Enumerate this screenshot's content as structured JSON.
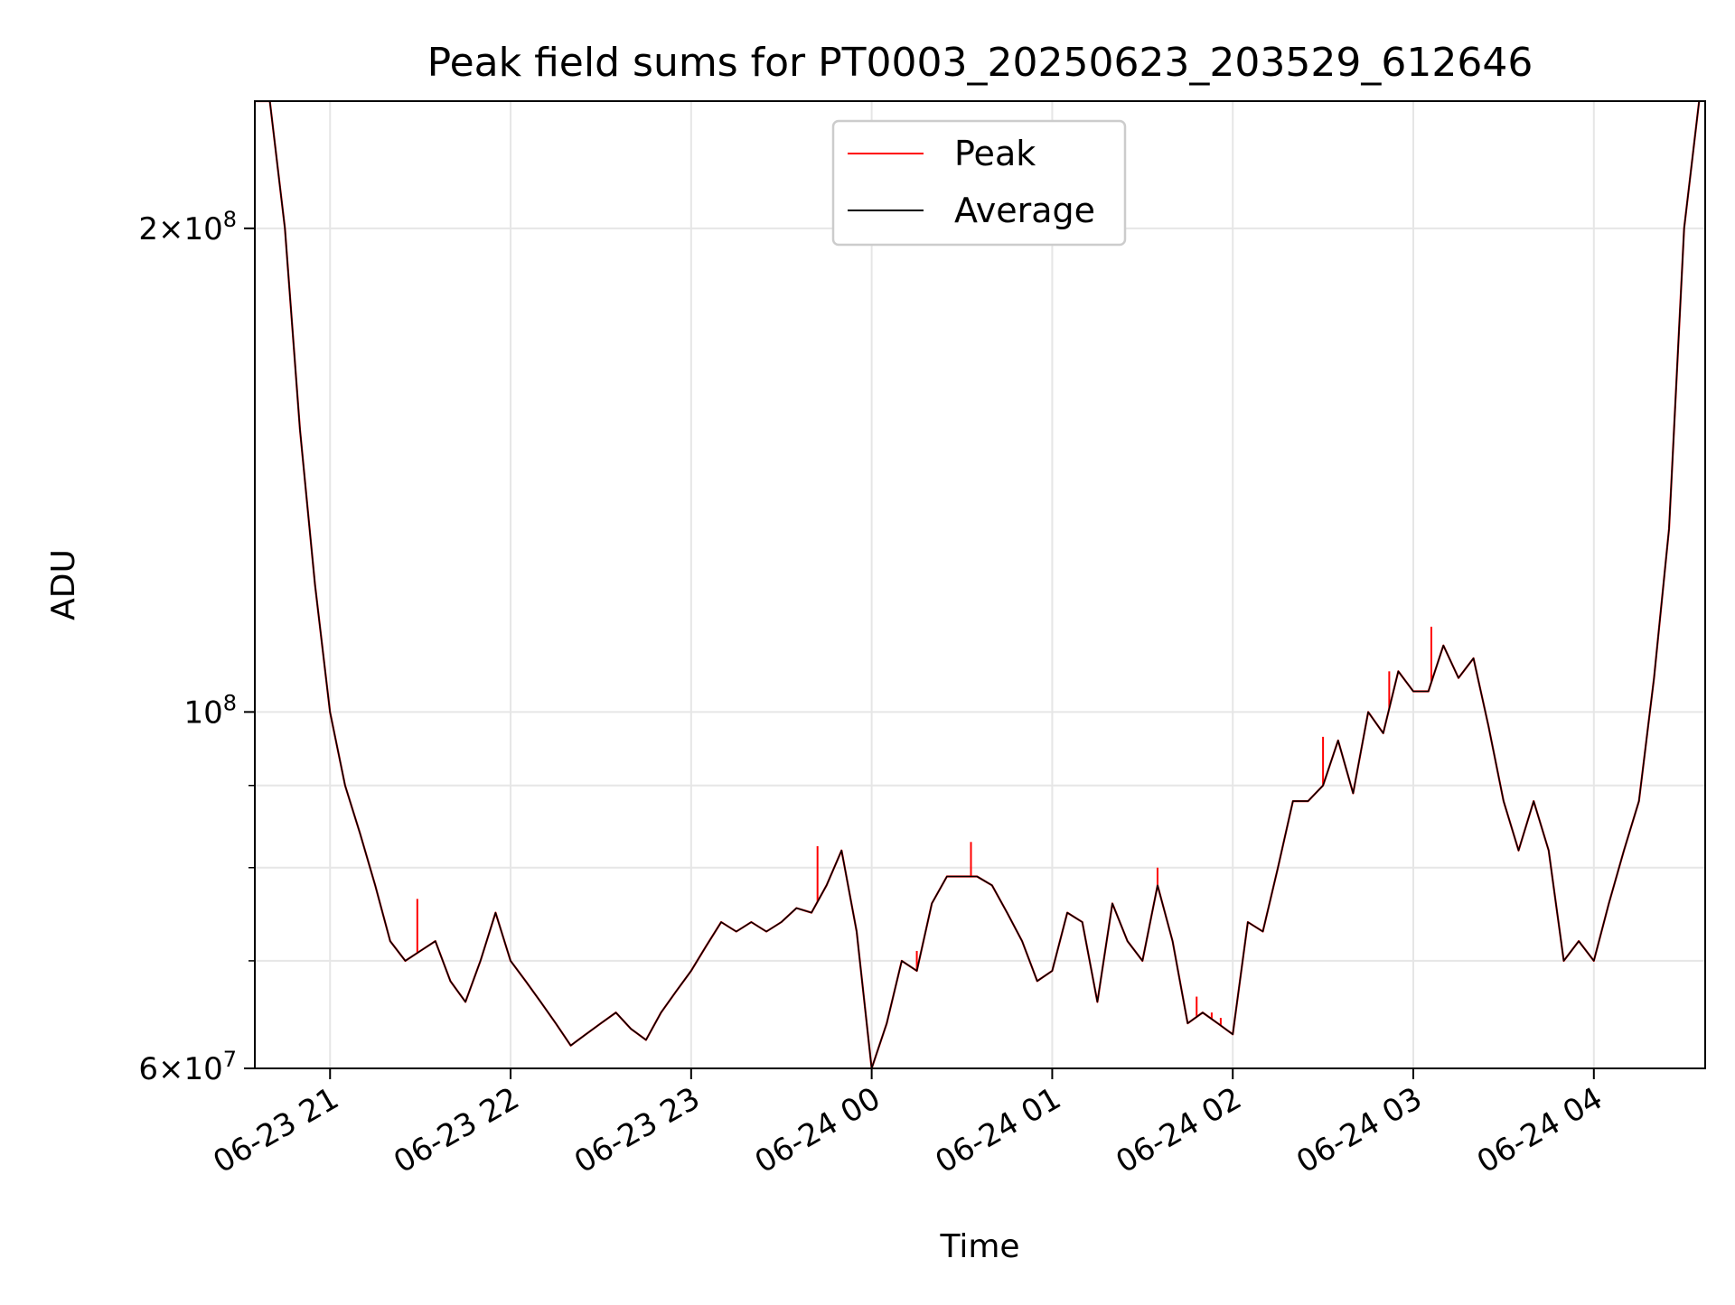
{
  "chart_data": {
    "type": "line",
    "title": "Peak field sums for PT0003_20250623_203529_612646",
    "xlabel": "Time",
    "ylabel": "ADU",
    "yscale": "log",
    "xlim": [
      "2025-06-23 20:35",
      "2025-06-24 04:37"
    ],
    "ylim": [
      60000000,
      240000000
    ],
    "grid": true,
    "legend": {
      "position": "top-center"
    },
    "x_ticks": [
      {
        "value": "2025-06-23 21:00",
        "label": "06-23 21"
      },
      {
        "value": "2025-06-23 22:00",
        "label": "06-23 22"
      },
      {
        "value": "2025-06-23 23:00",
        "label": "06-23 23"
      },
      {
        "value": "2025-06-24 00:00",
        "label": "06-24 00"
      },
      {
        "value": "2025-06-24 01:00",
        "label": "06-24 01"
      },
      {
        "value": "2025-06-24 02:00",
        "label": "06-24 02"
      },
      {
        "value": "2025-06-24 03:00",
        "label": "06-24 03"
      },
      {
        "value": "2025-06-24 04:00",
        "label": "06-24 04"
      }
    ],
    "y_ticks": [
      {
        "value": 60000000,
        "mantissa": "6",
        "exponent": "7"
      },
      {
        "value": 100000000,
        "mantissa": "",
        "exponent": "8"
      },
      {
        "value": 200000000,
        "mantissa": "2",
        "exponent": "8"
      }
    ],
    "y_minor_ticks": [
      70000000,
      80000000,
      90000000
    ],
    "series": [
      {
        "name": "Peak",
        "color": "#ff0000",
        "x": [
          "2025-06-24 00:15",
          "2025-06-24 00:33",
          "2025-06-24 01:35",
          "2025-06-24 02:30",
          "2025-06-24 03:06",
          "2025-06-23 21:29",
          "2025-06-23 23:42",
          "2025-06-24 01:48",
          "2025-06-24 01:53",
          "2025-06-24 01:56",
          "2025-06-24 02:52"
        ],
        "y": [
          71000000,
          83000000,
          80000000,
          96500000,
          113000000,
          76500000,
          82500000,
          66500000,
          65000000,
          64500000,
          106000000
        ]
      },
      {
        "name": "Average",
        "color": "#000000",
        "x": [
          "2025-06-23 20:35",
          "2025-06-23 20:40",
          "2025-06-23 20:45",
          "2025-06-23 20:50",
          "2025-06-23 20:55",
          "2025-06-23 21:00",
          "2025-06-23 21:05",
          "2025-06-23 21:10",
          "2025-06-23 21:15",
          "2025-06-23 21:20",
          "2025-06-23 21:25",
          "2025-06-23 21:30",
          "2025-06-23 21:35",
          "2025-06-23 21:40",
          "2025-06-23 21:45",
          "2025-06-23 21:50",
          "2025-06-23 21:55",
          "2025-06-23 22:00",
          "2025-06-23 22:05",
          "2025-06-23 22:10",
          "2025-06-23 22:15",
          "2025-06-23 22:20",
          "2025-06-23 22:25",
          "2025-06-23 22:30",
          "2025-06-23 22:35",
          "2025-06-23 22:40",
          "2025-06-23 22:45",
          "2025-06-23 22:50",
          "2025-06-23 22:55",
          "2025-06-23 23:00",
          "2025-06-23 23:05",
          "2025-06-23 23:10",
          "2025-06-23 23:15",
          "2025-06-23 23:20",
          "2025-06-23 23:25",
          "2025-06-23 23:30",
          "2025-06-23 23:35",
          "2025-06-23 23:40",
          "2025-06-23 23:45",
          "2025-06-23 23:50",
          "2025-06-23 23:55",
          "2025-06-24 00:00",
          "2025-06-24 00:05",
          "2025-06-24 00:10",
          "2025-06-24 00:15",
          "2025-06-24 00:20",
          "2025-06-24 00:25",
          "2025-06-24 00:30",
          "2025-06-24 00:35",
          "2025-06-24 00:40",
          "2025-06-24 00:45",
          "2025-06-24 00:50",
          "2025-06-24 00:55",
          "2025-06-24 01:00",
          "2025-06-24 01:05",
          "2025-06-24 01:10",
          "2025-06-24 01:15",
          "2025-06-24 01:20",
          "2025-06-24 01:25",
          "2025-06-24 01:30",
          "2025-06-24 01:35",
          "2025-06-24 01:40",
          "2025-06-24 01:45",
          "2025-06-24 01:50",
          "2025-06-24 01:55",
          "2025-06-24 02:00",
          "2025-06-24 02:05",
          "2025-06-24 02:10",
          "2025-06-24 02:15",
          "2025-06-24 02:20",
          "2025-06-24 02:25",
          "2025-06-24 02:30",
          "2025-06-24 02:35",
          "2025-06-24 02:40",
          "2025-06-24 02:45",
          "2025-06-24 02:50",
          "2025-06-24 02:55",
          "2025-06-24 03:00",
          "2025-06-24 03:05",
          "2025-06-24 03:10",
          "2025-06-24 03:15",
          "2025-06-24 03:20",
          "2025-06-24 03:25",
          "2025-06-24 03:30",
          "2025-06-24 03:35",
          "2025-06-24 03:40",
          "2025-06-24 03:45",
          "2025-06-24 03:50",
          "2025-06-24 03:55",
          "2025-06-24 04:00",
          "2025-06-24 04:05",
          "2025-06-24 04:10",
          "2025-06-24 04:15",
          "2025-06-24 04:20",
          "2025-06-24 04:25",
          "2025-06-24 04:30",
          "2025-06-24 04:35"
        ],
        "y": [
          240000000,
          240000000,
          200000000,
          150000000,
          120000000,
          100000000,
          90000000,
          84000000,
          78000000,
          72000000,
          70000000,
          71000000,
          72000000,
          68000000,
          66000000,
          70000000,
          75000000,
          70000000,
          68000000,
          66000000,
          64000000,
          62000000,
          63000000,
          64000000,
          65000000,
          63500000,
          62500000,
          65000000,
          67000000,
          69000000,
          71500000,
          74000000,
          73000000,
          74000000,
          73000000,
          74000000,
          75500000,
          75000000,
          78000000,
          82000000,
          73000000,
          60000000,
          64000000,
          70000000,
          69000000,
          76000000,
          79000000,
          79000000,
          79000000,
          78000000,
          75000000,
          72000000,
          68000000,
          69000000,
          75000000,
          74000000,
          66000000,
          76000000,
          72000000,
          70000000,
          78000000,
          72000000,
          64000000,
          65000000,
          64000000,
          63000000,
          74000000,
          73000000,
          80000000,
          88000000,
          88000000,
          90000000,
          96000000,
          89000000,
          100000000,
          97000000,
          106000000,
          103000000,
          103000000,
          110000000,
          105000000,
          108000000,
          98000000,
          88000000,
          82000000,
          88000000,
          82000000,
          70000000,
          72000000,
          70000000,
          76000000,
          82000000,
          88000000,
          105000000,
          130000000,
          200000000,
          240000000
        ]
      }
    ]
  }
}
